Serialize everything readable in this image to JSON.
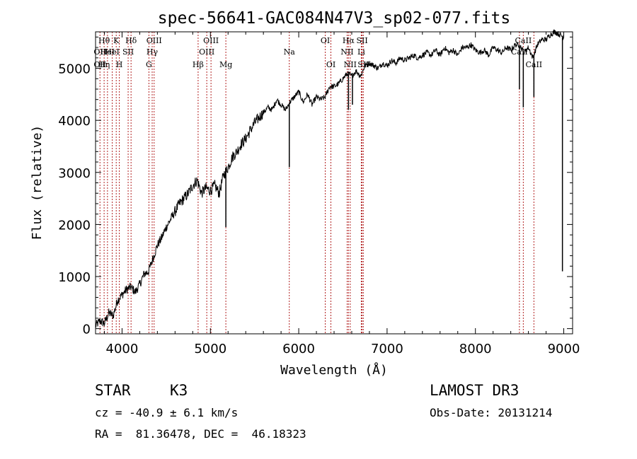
{
  "chart_data": {
    "type": "line",
    "title": "spec-56641-GAC084N47V3_sp02-077.fits",
    "xlabel": "Wavelength (Å)",
    "ylabel": "Flux (relative)",
    "xlim": [
      3700,
      9100
    ],
    "ylim": [
      -100,
      5700
    ],
    "x_ticks": [
      4000,
      5000,
      6000,
      7000,
      8000,
      9000
    ],
    "x_tick_labels": [
      "4000",
      "5000",
      "6000",
      "7000",
      "8000",
      "9000"
    ],
    "y_ticks": [
      0,
      1000,
      2000,
      3000,
      4000,
      5000
    ],
    "y_tick_labels": [
      "0",
      "1000",
      "2000",
      "3000",
      "4000",
      "5000"
    ],
    "series": [
      {
        "name": "flux",
        "x": [
          3700,
          3750,
          3800,
          3850,
          3900,
          3950,
          4000,
          4050,
          4100,
          4150,
          4200,
          4250,
          4300,
          4350,
          4400,
          4450,
          4500,
          4550,
          4600,
          4650,
          4700,
          4750,
          4800,
          4850,
          4900,
          4950,
          5000,
          5050,
          5100,
          5150,
          5200,
          5250,
          5300,
          5350,
          5400,
          5450,
          5500,
          5550,
          5600,
          5650,
          5700,
          5750,
          5800,
          5850,
          5900,
          5950,
          6000,
          6050,
          6100,
          6150,
          6200,
          6250,
          6300,
          6350,
          6400,
          6450,
          6500,
          6550,
          6600,
          6650,
          6700,
          6750,
          6800,
          6850,
          6900,
          6950,
          7000,
          7050,
          7100,
          7150,
          7200,
          7250,
          7300,
          7350,
          7400,
          7450,
          7500,
          7550,
          7600,
          7650,
          7700,
          7750,
          7800,
          7850,
          7900,
          7950,
          8000,
          8050,
          8100,
          8150,
          8200,
          8250,
          8300,
          8350,
          8400,
          8450,
          8500,
          8550,
          8600,
          8650,
          8700,
          8750,
          8800,
          8850,
          8900,
          8950,
          9000
        ],
        "y": [
          50,
          150,
          100,
          300,
          250,
          550,
          650,
          750,
          800,
          700,
          850,
          1050,
          1100,
          1350,
          1600,
          1750,
          1950,
          2100,
          2250,
          2400,
          2500,
          2600,
          2750,
          2850,
          2600,
          2700,
          2650,
          2750,
          2600,
          2950,
          3100,
          3300,
          3400,
          3550,
          3650,
          3800,
          3950,
          4050,
          4150,
          4250,
          4200,
          4400,
          4300,
          4200,
          4350,
          4450,
          4550,
          4350,
          4500,
          4300,
          4450,
          4400,
          4450,
          4650,
          4650,
          4700,
          4800,
          4900,
          4850,
          4950,
          4850,
          5050,
          5100,
          5050,
          5000,
          5100,
          5050,
          5150,
          5100,
          5200,
          5150,
          5200,
          5250,
          5200,
          5250,
          5300,
          5250,
          5350,
          5250,
          5400,
          5300,
          5350,
          5250,
          5400,
          5400,
          5450,
          5350,
          5300,
          5350,
          5250,
          5400,
          5350,
          5300,
          5400,
          5350,
          5450,
          5450,
          5300,
          5400,
          5200,
          5450,
          5550,
          5550,
          5650,
          5700,
          5650,
          5600
        ]
      }
    ],
    "absorption_features": [
      {
        "x": 5893,
        "y": 3100
      },
      {
        "x": 5175,
        "y": 1950
      },
      {
        "x": 6563,
        "y": 4200
      },
      {
        "x": 6608,
        "y": 4300
      },
      {
        "x": 8498,
        "y": 4600
      },
      {
        "x": 8542,
        "y": 4250
      },
      {
        "x": 8662,
        "y": 4450
      },
      {
        "x": 8985,
        "y": 1100
      }
    ],
    "line_markers": [
      {
        "x": 3750,
        "labels": [
          {
            "text": "OII",
            "row": 2
          },
          {
            "text": "OII",
            "row": 3
          }
        ]
      },
      {
        "x": 3797,
        "labels": [
          {
            "text": "Hθ",
            "row": 1
          },
          {
            "text": "Hη",
            "row": 3
          }
        ]
      },
      {
        "x": 3835,
        "labels": [
          {
            "text": "HeI",
            "row": 2
          }
        ]
      },
      {
        "x": 3889,
        "labels": [
          {
            "text": "HeI",
            "row": 2
          }
        ]
      },
      {
        "x": 3934,
        "labels": [
          {
            "text": "K",
            "row": 1
          }
        ]
      },
      {
        "x": 3969,
        "labels": [
          {
            "text": "H",
            "row": 3
          }
        ]
      },
      {
        "x": 4069,
        "labels": [
          {
            "text": "SII",
            "row": 2
          }
        ]
      },
      {
        "x": 4102,
        "labels": [
          {
            "text": "Hδ",
            "row": 1
          }
        ]
      },
      {
        "x": 4304,
        "labels": [
          {
            "text": "G",
            "row": 3
          }
        ]
      },
      {
        "x": 4341,
        "labels": [
          {
            "text": "Hγ",
            "row": 2
          }
        ]
      },
      {
        "x": 4363,
        "labels": [
          {
            "text": "OIII",
            "row": 1
          }
        ]
      },
      {
        "x": 4861,
        "labels": [
          {
            "text": "Hβ",
            "row": 3
          }
        ]
      },
      {
        "x": 4959,
        "labels": [
          {
            "text": "OIII",
            "row": 2
          }
        ]
      },
      {
        "x": 5007,
        "labels": [
          {
            "text": "OIII",
            "row": 1
          }
        ]
      },
      {
        "x": 5175,
        "labels": [
          {
            "text": "Mg",
            "row": 3
          }
        ]
      },
      {
        "x": 5893,
        "labels": [
          {
            "text": "Na",
            "row": 2
          }
        ]
      },
      {
        "x": 6300,
        "labels": [
          {
            "text": "OI",
            "row": 1
          }
        ]
      },
      {
        "x": 6364,
        "labels": [
          {
            "text": "OI",
            "row": 3
          }
        ]
      },
      {
        "x": 6548,
        "labels": [
          {
            "text": "NII",
            "row": 2
          }
        ]
      },
      {
        "x": 6563,
        "labels": [
          {
            "text": "Hα",
            "row": 1
          }
        ]
      },
      {
        "x": 6583,
        "labels": [
          {
            "text": "NII",
            "row": 3
          }
        ]
      },
      {
        "x": 6708,
        "labels": [
          {
            "text": "Li",
            "row": 2
          }
        ]
      },
      {
        "x": 6717,
        "labels": [
          {
            "text": "SII",
            "row": 1
          }
        ]
      },
      {
        "x": 6731,
        "labels": [
          {
            "text": "SII",
            "row": 3
          }
        ]
      },
      {
        "x": 8498,
        "labels": [
          {
            "text": "CaII",
            "row": 2
          }
        ]
      },
      {
        "x": 8542,
        "labels": [
          {
            "text": "CaII",
            "row": 1
          }
        ]
      },
      {
        "x": 8662,
        "labels": [
          {
            "text": "CaII",
            "row": 3
          }
        ]
      }
    ]
  },
  "info": {
    "object_class": "STAR",
    "subclass": "K3",
    "survey": "LAMOST DR3",
    "redshift": "cz = -40.9 ± 6.1 km/s",
    "obs_date": "Obs-Date: 20131214",
    "coords": "RA =  81.36478, DEC =  46.18323"
  }
}
